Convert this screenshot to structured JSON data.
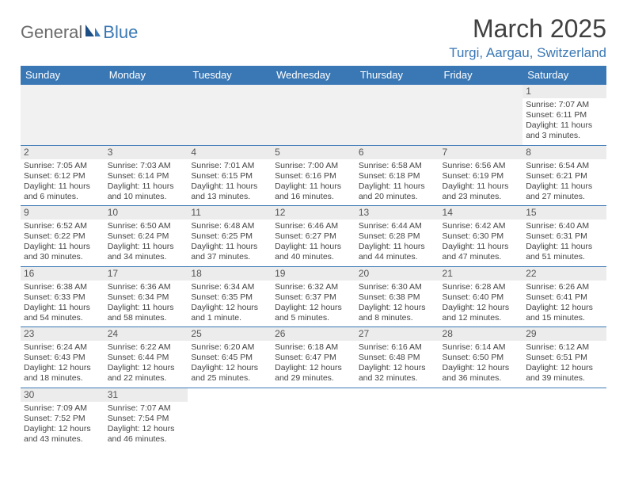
{
  "logo": {
    "part1": "General",
    "part2": "Blue"
  },
  "title": "March 2025",
  "location": "Turgi, Aargau, Switzerland",
  "colors": {
    "header_bg": "#3a78b5",
    "header_text": "#ffffff",
    "daynum_bg": "#ececec",
    "border": "#3a78b5",
    "logo_gray": "#6a6a6a",
    "logo_blue": "#3a78b5"
  },
  "weekdays": [
    "Sunday",
    "Monday",
    "Tuesday",
    "Wednesday",
    "Thursday",
    "Friday",
    "Saturday"
  ],
  "weeks": [
    [
      null,
      null,
      null,
      null,
      null,
      null,
      {
        "n": "1",
        "sr": "Sunrise: 7:07 AM",
        "ss": "Sunset: 6:11 PM",
        "d1": "Daylight: 11 hours",
        "d2": "and 3 minutes."
      }
    ],
    [
      {
        "n": "2",
        "sr": "Sunrise: 7:05 AM",
        "ss": "Sunset: 6:12 PM",
        "d1": "Daylight: 11 hours",
        "d2": "and 6 minutes."
      },
      {
        "n": "3",
        "sr": "Sunrise: 7:03 AM",
        "ss": "Sunset: 6:14 PM",
        "d1": "Daylight: 11 hours",
        "d2": "and 10 minutes."
      },
      {
        "n": "4",
        "sr": "Sunrise: 7:01 AM",
        "ss": "Sunset: 6:15 PM",
        "d1": "Daylight: 11 hours",
        "d2": "and 13 minutes."
      },
      {
        "n": "5",
        "sr": "Sunrise: 7:00 AM",
        "ss": "Sunset: 6:16 PM",
        "d1": "Daylight: 11 hours",
        "d2": "and 16 minutes."
      },
      {
        "n": "6",
        "sr": "Sunrise: 6:58 AM",
        "ss": "Sunset: 6:18 PM",
        "d1": "Daylight: 11 hours",
        "d2": "and 20 minutes."
      },
      {
        "n": "7",
        "sr": "Sunrise: 6:56 AM",
        "ss": "Sunset: 6:19 PM",
        "d1": "Daylight: 11 hours",
        "d2": "and 23 minutes."
      },
      {
        "n": "8",
        "sr": "Sunrise: 6:54 AM",
        "ss": "Sunset: 6:21 PM",
        "d1": "Daylight: 11 hours",
        "d2": "and 27 minutes."
      }
    ],
    [
      {
        "n": "9",
        "sr": "Sunrise: 6:52 AM",
        "ss": "Sunset: 6:22 PM",
        "d1": "Daylight: 11 hours",
        "d2": "and 30 minutes."
      },
      {
        "n": "10",
        "sr": "Sunrise: 6:50 AM",
        "ss": "Sunset: 6:24 PM",
        "d1": "Daylight: 11 hours",
        "d2": "and 34 minutes."
      },
      {
        "n": "11",
        "sr": "Sunrise: 6:48 AM",
        "ss": "Sunset: 6:25 PM",
        "d1": "Daylight: 11 hours",
        "d2": "and 37 minutes."
      },
      {
        "n": "12",
        "sr": "Sunrise: 6:46 AM",
        "ss": "Sunset: 6:27 PM",
        "d1": "Daylight: 11 hours",
        "d2": "and 40 minutes."
      },
      {
        "n": "13",
        "sr": "Sunrise: 6:44 AM",
        "ss": "Sunset: 6:28 PM",
        "d1": "Daylight: 11 hours",
        "d2": "and 44 minutes."
      },
      {
        "n": "14",
        "sr": "Sunrise: 6:42 AM",
        "ss": "Sunset: 6:30 PM",
        "d1": "Daylight: 11 hours",
        "d2": "and 47 minutes."
      },
      {
        "n": "15",
        "sr": "Sunrise: 6:40 AM",
        "ss": "Sunset: 6:31 PM",
        "d1": "Daylight: 11 hours",
        "d2": "and 51 minutes."
      }
    ],
    [
      {
        "n": "16",
        "sr": "Sunrise: 6:38 AM",
        "ss": "Sunset: 6:33 PM",
        "d1": "Daylight: 11 hours",
        "d2": "and 54 minutes."
      },
      {
        "n": "17",
        "sr": "Sunrise: 6:36 AM",
        "ss": "Sunset: 6:34 PM",
        "d1": "Daylight: 11 hours",
        "d2": "and 58 minutes."
      },
      {
        "n": "18",
        "sr": "Sunrise: 6:34 AM",
        "ss": "Sunset: 6:35 PM",
        "d1": "Daylight: 12 hours",
        "d2": "and 1 minute."
      },
      {
        "n": "19",
        "sr": "Sunrise: 6:32 AM",
        "ss": "Sunset: 6:37 PM",
        "d1": "Daylight: 12 hours",
        "d2": "and 5 minutes."
      },
      {
        "n": "20",
        "sr": "Sunrise: 6:30 AM",
        "ss": "Sunset: 6:38 PM",
        "d1": "Daylight: 12 hours",
        "d2": "and 8 minutes."
      },
      {
        "n": "21",
        "sr": "Sunrise: 6:28 AM",
        "ss": "Sunset: 6:40 PM",
        "d1": "Daylight: 12 hours",
        "d2": "and 12 minutes."
      },
      {
        "n": "22",
        "sr": "Sunrise: 6:26 AM",
        "ss": "Sunset: 6:41 PM",
        "d1": "Daylight: 12 hours",
        "d2": "and 15 minutes."
      }
    ],
    [
      {
        "n": "23",
        "sr": "Sunrise: 6:24 AM",
        "ss": "Sunset: 6:43 PM",
        "d1": "Daylight: 12 hours",
        "d2": "and 18 minutes."
      },
      {
        "n": "24",
        "sr": "Sunrise: 6:22 AM",
        "ss": "Sunset: 6:44 PM",
        "d1": "Daylight: 12 hours",
        "d2": "and 22 minutes."
      },
      {
        "n": "25",
        "sr": "Sunrise: 6:20 AM",
        "ss": "Sunset: 6:45 PM",
        "d1": "Daylight: 12 hours",
        "d2": "and 25 minutes."
      },
      {
        "n": "26",
        "sr": "Sunrise: 6:18 AM",
        "ss": "Sunset: 6:47 PM",
        "d1": "Daylight: 12 hours",
        "d2": "and 29 minutes."
      },
      {
        "n": "27",
        "sr": "Sunrise: 6:16 AM",
        "ss": "Sunset: 6:48 PM",
        "d1": "Daylight: 12 hours",
        "d2": "and 32 minutes."
      },
      {
        "n": "28",
        "sr": "Sunrise: 6:14 AM",
        "ss": "Sunset: 6:50 PM",
        "d1": "Daylight: 12 hours",
        "d2": "and 36 minutes."
      },
      {
        "n": "29",
        "sr": "Sunrise: 6:12 AM",
        "ss": "Sunset: 6:51 PM",
        "d1": "Daylight: 12 hours",
        "d2": "and 39 minutes."
      }
    ],
    [
      {
        "n": "30",
        "sr": "Sunrise: 7:09 AM",
        "ss": "Sunset: 7:52 PM",
        "d1": "Daylight: 12 hours",
        "d2": "and 43 minutes."
      },
      {
        "n": "31",
        "sr": "Sunrise: 7:07 AM",
        "ss": "Sunset: 7:54 PM",
        "d1": "Daylight: 12 hours",
        "d2": "and 46 minutes."
      },
      null,
      null,
      null,
      null,
      null
    ]
  ]
}
